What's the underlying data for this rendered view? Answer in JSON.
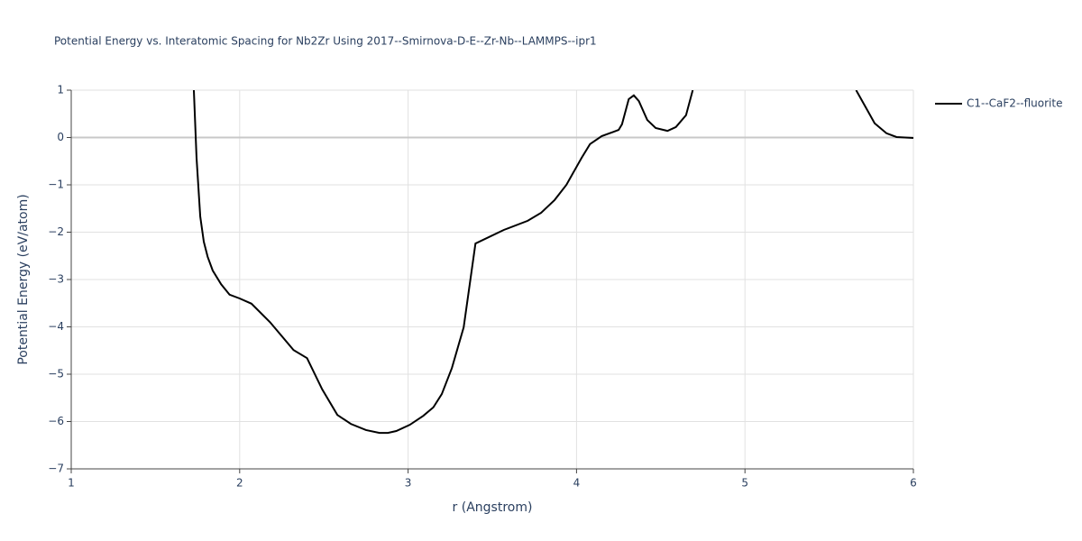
{
  "chart_data": {
    "type": "line",
    "title": "Potential Energy vs. Interatomic Spacing for Nb2Zr Using 2017--Smirnova-D-E--Zr-Nb--LAMMPS--ipr1",
    "x_label": "r (Angstrom)",
    "y_label": "Potential Energy (eV/atom)",
    "x": [
      1.728,
      1.744,
      1.766,
      1.787,
      1.81,
      1.84,
      1.89,
      1.94,
      2.0,
      2.07,
      2.18,
      2.32,
      2.4,
      2.49,
      2.58,
      2.66,
      2.75,
      2.83,
      2.88,
      2.93,
      3.01,
      3.09,
      3.15,
      3.2,
      3.26,
      3.33,
      3.4,
      3.57,
      3.71,
      3.79,
      3.87,
      3.94,
      4.03,
      4.08,
      4.15,
      4.22,
      4.25,
      4.27,
      4.31,
      4.34,
      4.37,
      4.42,
      4.47,
      4.54,
      4.59,
      4.65,
      4.69,
      5.2,
      5.66,
      5.72,
      5.77,
      5.84,
      5.9,
      6.0
    ],
    "series": [
      {
        "name": "C1--CaF2--fluorite",
        "color": "#000000",
        "values": [
          1.0,
          -0.43,
          -1.67,
          -2.2,
          -2.52,
          -2.81,
          -3.1,
          -3.32,
          -3.4,
          -3.51,
          -3.9,
          -4.49,
          -4.66,
          -5.32,
          -5.86,
          -6.05,
          -6.18,
          -6.24,
          -6.24,
          -6.2,
          -6.07,
          -5.88,
          -5.7,
          -5.42,
          -4.87,
          -4.01,
          -2.24,
          -1.95,
          -1.76,
          -1.59,
          -1.32,
          -1.0,
          -0.43,
          -0.14,
          0.03,
          0.12,
          0.16,
          0.28,
          0.81,
          0.89,
          0.77,
          0.37,
          0.2,
          0.14,
          0.22,
          0.47,
          1.0,
          null,
          1.0,
          0.62,
          0.3,
          0.09,
          0.01,
          -0.01
        ]
      }
    ],
    "xlim": [
      1,
      6
    ],
    "xticks": [
      1,
      2,
      3,
      4,
      5,
      6
    ],
    "ylim": [
      -7,
      1
    ],
    "yticks": [
      {
        "value": -7,
        "label": "−7"
      },
      {
        "value": -6,
        "label": "−6"
      },
      {
        "value": -5,
        "label": "−5"
      },
      {
        "value": -4,
        "label": "−4"
      },
      {
        "value": -3,
        "label": "−3"
      },
      {
        "value": -2,
        "label": "−2"
      },
      {
        "value": -1,
        "label": "−1"
      },
      0,
      1
    ],
    "grid": true,
    "legend": "right"
  }
}
